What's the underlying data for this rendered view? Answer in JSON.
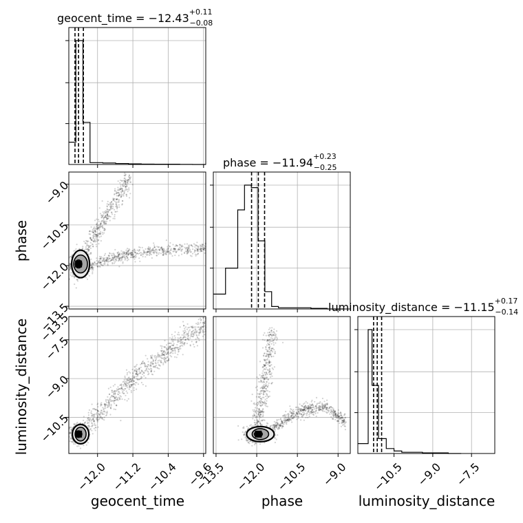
{
  "chart_data": {
    "type": "corner",
    "parameters": [
      {
        "key": "geocent_time",
        "label": "geocent_time",
        "title": {
          "text": "geocent_time = −12.43",
          "plus": "+0.11",
          "minus": "−0.08"
        },
        "range": [
          -12.65,
          -9.55
        ],
        "ticks": [
          -12.0,
          -11.2,
          -10.4,
          -9.6
        ],
        "tick_labels": [
          "−12.0",
          "−11.2",
          "−10.4",
          "−9.6"
        ],
        "quantiles": [
          -12.51,
          -12.43,
          -12.32
        ],
        "hist_bins": [
          -12.65,
          -12.49,
          -12.33,
          -12.17,
          -11.88,
          -11.59,
          -11.3,
          -11.01,
          -10.72,
          -10.43,
          -10.14,
          -9.85,
          -9.55
        ],
        "hist_values": [
          0.18,
          1.0,
          0.34,
          0.015,
          0.012,
          0.008,
          0.005,
          0.003,
          0.002,
          0.002,
          0.001,
          0.0
        ]
      },
      {
        "key": "phase",
        "label": "phase",
        "title": {
          "text": "phase = −11.94",
          "plus": "+0.23",
          "minus": "−0.25"
        },
        "range": [
          -13.6,
          -8.55
        ],
        "ticks": [
          -13.5,
          -12.0,
          -10.5,
          -9.0
        ],
        "tick_labels": [
          "−13.5",
          "−12.0",
          "−10.5",
          "−9.0"
        ],
        "quantiles": [
          -12.19,
          -11.94,
          -11.71
        ],
        "hist_bins": [
          -13.6,
          -13.15,
          -12.7,
          -12.45,
          -12.2,
          -11.95,
          -11.7,
          -11.45,
          -11.2,
          -10.6,
          -10.0,
          -9.4,
          -8.8
        ],
        "hist_values": [
          0.12,
          0.33,
          0.8,
          1.0,
          0.98,
          0.55,
          0.14,
          0.02,
          0.01,
          0.01,
          0.005,
          0.0
        ]
      },
      {
        "key": "luminosity_distance",
        "label": "luminosity_distance",
        "title": {
          "text": "luminosity_distance = −11.15",
          "plus": "+0.17",
          "minus": "−0.14"
        },
        "range": [
          -11.9,
          -6.6
        ],
        "ticks": [
          -10.5,
          -9.0,
          -7.5
        ],
        "tick_labels": [
          "−10.5",
          "−9.0",
          "−7.5"
        ],
        "y_ticks_2d": [
          -13.5,
          -7.5,
          -9.0,
          -10.5
        ],
        "y_tick_labels_2d": [
          "−13.5",
          "−7.5",
          "−9.0",
          "−10.5"
        ],
        "quantiles": [
          -11.29,
          -11.15,
          -10.98
        ],
        "hist_bins": [
          -11.9,
          -11.5,
          -11.35,
          -11.1,
          -10.8,
          -10.5,
          -10.2,
          -9.9,
          -9.4,
          -8.9,
          -8.4,
          -7.9
        ],
        "hist_values": [
          0.08,
          1.0,
          0.55,
          0.12,
          0.04,
          0.02,
          0.01,
          0.01,
          0.005,
          0.005,
          0.0
        ]
      }
    ],
    "hist_yticks": [
      0.33,
      0.66,
      1.0
    ],
    "grid": true
  }
}
